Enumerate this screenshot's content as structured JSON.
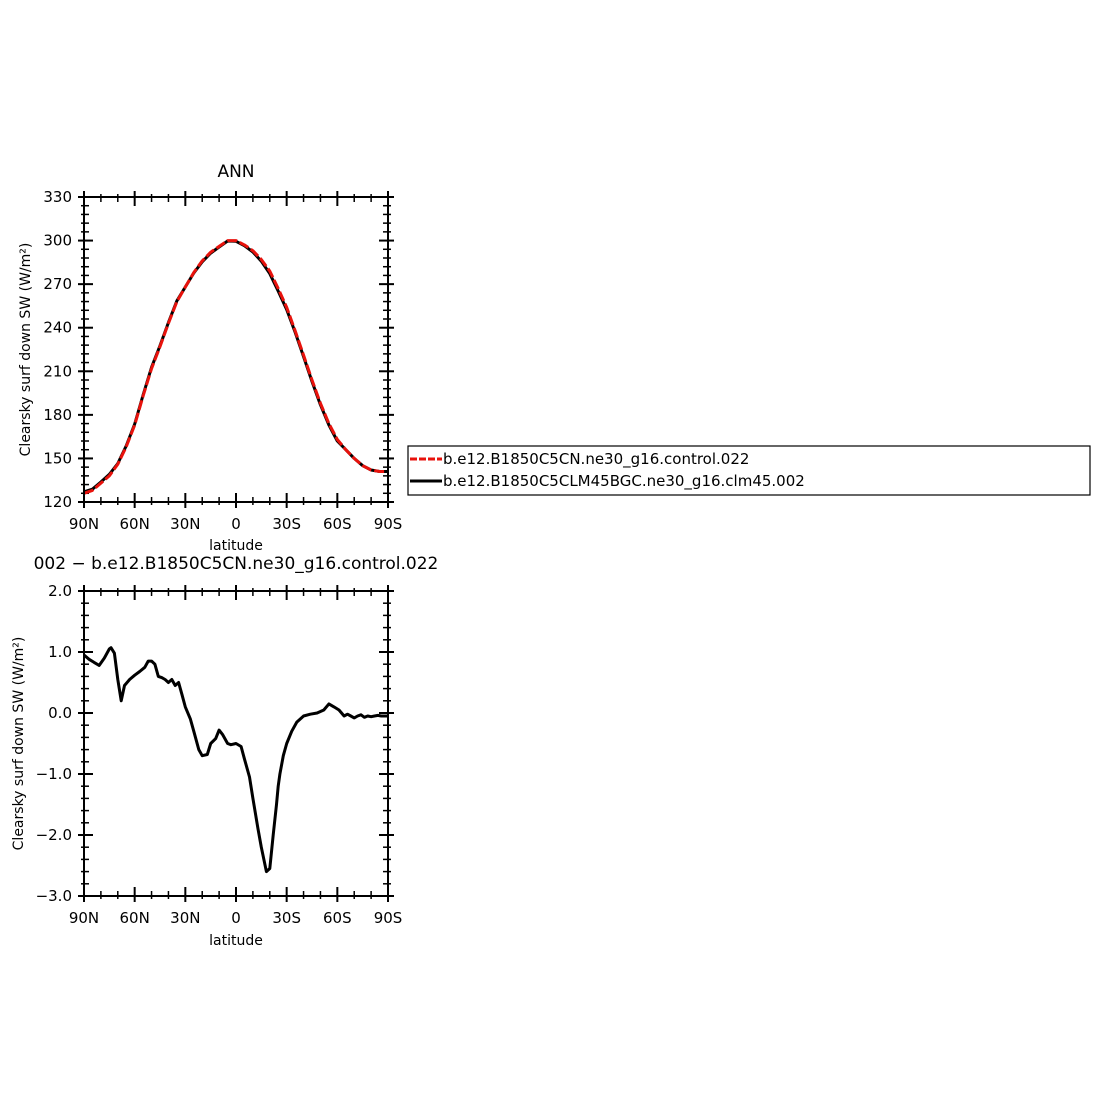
{
  "chart_data": [
    {
      "type": "line",
      "title": "ANN",
      "xlabel": "latitude",
      "ylabel": "Clearsky surf down SW (W/m²)",
      "xlim": [
        90,
        -90
      ],
      "ylim": [
        120,
        330
      ],
      "x_tick_values": [
        90,
        60,
        30,
        0,
        -30,
        -60,
        -90
      ],
      "x_tick_labels": [
        "90N",
        "60N",
        "30N",
        "0",
        "30S",
        "60S",
        "90S"
      ],
      "y_tick_values": [
        120,
        150,
        180,
        210,
        240,
        270,
        300,
        330
      ],
      "y_tick_labels": [
        "120",
        "150",
        "180",
        "210",
        "240",
        "270",
        "300",
        "330"
      ],
      "series": [
        {
          "name": "b.e12.B1850C5CN.ne30_g16.control.022",
          "color": "#e8120c",
          "dash": true,
          "x": [
            90,
            85,
            80,
            75,
            70,
            65,
            60,
            55,
            50,
            45,
            40,
            35,
            30,
            25,
            20,
            15,
            10,
            5,
            0,
            -5,
            -10,
            -15,
            -20,
            -25,
            -30,
            -35,
            -40,
            -45,
            -50,
            -55,
            -60,
            -65,
            -70,
            -75,
            -80,
            -85,
            -90
          ],
          "y": [
            126,
            128,
            133,
            138,
            146,
            158,
            173,
            193,
            212,
            227,
            243,
            258,
            268,
            278,
            286,
            292,
            296,
            300,
            300,
            297,
            293,
            287,
            279,
            267,
            254,
            238,
            221,
            204,
            188,
            174,
            163,
            156,
            150,
            145,
            142,
            141,
            141
          ]
        },
        {
          "name": "b.e12.B1850C5CLM45BGC.ne30_g16.clm45.002",
          "color": "#000000",
          "dash": false,
          "x": [
            90,
            85,
            80,
            75,
            70,
            65,
            60,
            55,
            50,
            45,
            40,
            35,
            30,
            25,
            20,
            15,
            10,
            5,
            0,
            -5,
            -10,
            -15,
            -20,
            -25,
            -30,
            -35,
            -40,
            -45,
            -50,
            -55,
            -60,
            -65,
            -70,
            -75,
            -80,
            -85,
            -90
          ],
          "y": [
            127,
            128.8,
            133.8,
            139,
            146.5,
            158.6,
            173.7,
            193.7,
            212.8,
            227.6,
            243.5,
            258.5,
            268,
            277.7,
            285.4,
            291.4,
            295.6,
            299.7,
            299.5,
            296.5,
            292.1,
            285.8,
            277.2,
            265.2,
            252.5,
            237,
            220,
            203,
            187,
            173,
            162,
            156,
            150,
            145,
            142,
            141,
            141
          ]
        }
      ]
    },
    {
      "type": "line",
      "title": "002 − b.e12.B1850C5CN.ne30_g16.control.022",
      "xlabel": "latitude",
      "ylabel": "Clearsky surf down SW (W/m²)",
      "xlim": [
        90,
        -90
      ],
      "ylim": [
        -3.0,
        2.0
      ],
      "x_tick_values": [
        90,
        60,
        30,
        0,
        -30,
        -60,
        -90
      ],
      "x_tick_labels": [
        "90N",
        "60N",
        "30N",
        "0",
        "30S",
        "60S",
        "90S"
      ],
      "y_tick_values": [
        -3.0,
        -2.0,
        -1.0,
        0.0,
        1.0,
        2.0
      ],
      "y_tick_labels": [
        "−3.0",
        "−2.0",
        "−1.0",
        "0.0",
        "1.0",
        "2.0"
      ],
      "series": [
        {
          "color": "#000000",
          "dash": false,
          "x": [
            90,
            87,
            84,
            81,
            78,
            75,
            74,
            72,
            70,
            68,
            66,
            63,
            60,
            57,
            54,
            52,
            50,
            48,
            46,
            44,
            42,
            40,
            38,
            36,
            34,
            32,
            30,
            27,
            25,
            22,
            20,
            17,
            15,
            12,
            10,
            8,
            5,
            3,
            0,
            -3,
            -5,
            -8,
            -10,
            -13,
            -15,
            -18,
            -20,
            -22,
            -24,
            -25,
            -26,
            -28,
            -30,
            -33,
            -36,
            -40,
            -44,
            -48,
            -52,
            -55,
            -58,
            -61,
            -64,
            -66,
            -68,
            -70,
            -72,
            -74,
            -76,
            -78,
            -80,
            -82,
            -84,
            -86,
            -88,
            -90
          ],
          "y": [
            0.95,
            0.88,
            0.83,
            0.78,
            0.9,
            1.05,
            1.07,
            0.98,
            0.55,
            0.2,
            0.45,
            0.55,
            0.62,
            0.68,
            0.75,
            0.85,
            0.85,
            0.8,
            0.6,
            0.58,
            0.55,
            0.5,
            0.55,
            0.45,
            0.5,
            0.3,
            0.1,
            -0.1,
            -0.3,
            -0.6,
            -0.7,
            -0.68,
            -0.5,
            -0.42,
            -0.28,
            -0.35,
            -0.5,
            -0.52,
            -0.5,
            -0.55,
            -0.75,
            -1.05,
            -1.4,
            -1.9,
            -2.2,
            -2.6,
            -2.55,
            -2.0,
            -1.5,
            -1.2,
            -1.0,
            -0.7,
            -0.5,
            -0.3,
            -0.15,
            -0.05,
            -0.02,
            0.0,
            0.05,
            0.15,
            0.1,
            0.05,
            -0.05,
            -0.02,
            -0.05,
            -0.08,
            -0.05,
            -0.03,
            -0.07,
            -0.05,
            -0.06,
            -0.05,
            -0.04,
            -0.05,
            -0.05,
            -0.05
          ]
        }
      ]
    }
  ],
  "legend": {
    "entries": [
      {
        "label": "b.e12.B1850C5CN.ne30_g16.control.022",
        "color": "#e8120c",
        "dash": true
      },
      {
        "label": "b.e12.B1850C5CLM45BGC.ne30_g16.clm45.002",
        "color": "#000000",
        "dash": false
      }
    ]
  }
}
